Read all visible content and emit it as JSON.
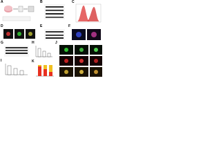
{
  "panels": [
    {
      "label": "A"
    },
    {
      "label": "B"
    },
    {
      "label": "C"
    },
    {
      "label": "D"
    },
    {
      "label": "E"
    },
    {
      "label": "F"
    },
    {
      "label": "G"
    },
    {
      "label": "H"
    },
    {
      "label": "I"
    },
    {
      "label": "J"
    },
    {
      "label": "K"
    }
  ]
}
